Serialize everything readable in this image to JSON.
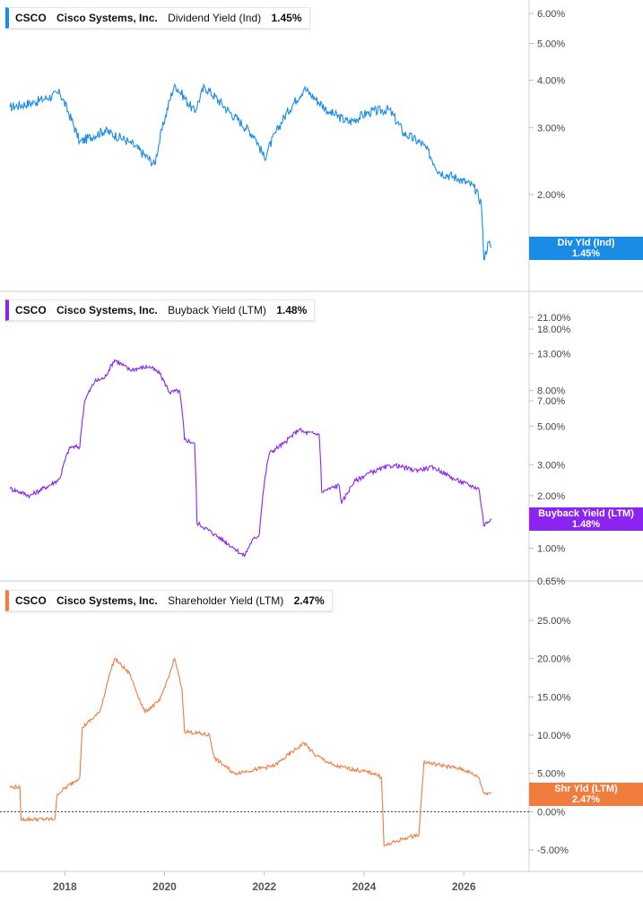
{
  "ticker": "CSCO",
  "company": "Cisco Systems, Inc.",
  "colors": {
    "panel1": "#1a8ce6",
    "panel2": "#8a24ee",
    "panel3": "#f07c3e"
  },
  "x_axis": {
    "ticks": [
      "2018",
      "2020",
      "2022",
      "2024",
      "2026"
    ]
  },
  "chart_data": [
    {
      "type": "line",
      "metric": "Dividend Yield (Ind)",
      "value_label": "1.45%",
      "tag": {
        "title": "Div Yld (Ind)",
        "value": "1.45%"
      },
      "scale": "log",
      "yticks": [
        "6.00%",
        "5.00%",
        "4.00%",
        "3.00%",
        "2.00%"
      ],
      "x_range": [
        2016.9,
        2026.6
      ],
      "series": [
        {
          "x": [
            2016.9,
            2017.4,
            2017.9,
            2018.3,
            2018.8,
            2019.3,
            2019.8,
            2020.2,
            2020.6,
            2020.8,
            2021.3,
            2021.8,
            2022.0,
            2022.4,
            2022.8,
            2023.3,
            2023.7,
            2024.1,
            2024.5,
            2024.8,
            2025.2,
            2025.5,
            2025.9,
            2026.2,
            2026.35,
            2026.4,
            2026.5,
            2026.55
          ],
          "y": [
            3.4,
            3.5,
            3.7,
            2.75,
            2.95,
            2.75,
            2.4,
            3.9,
            3.3,
            3.85,
            3.3,
            2.85,
            2.5,
            3.2,
            3.8,
            3.3,
            3.1,
            3.3,
            3.35,
            2.9,
            2.7,
            2.3,
            2.2,
            2.1,
            1.9,
            1.35,
            1.5,
            1.45
          ]
        }
      ]
    },
    {
      "type": "line",
      "metric": "Buyback Yield (LTM)",
      "value_label": "1.48%",
      "tag": {
        "title": "Buyback Yield (LTM)",
        "value": "1.48%"
      },
      "scale": "log",
      "yticks": [
        "21.00%",
        "18.00%",
        "13.00%",
        "8.00%",
        "7.00%",
        "5.00%",
        "3.00%",
        "2.00%",
        "1.00%",
        "0.65%"
      ],
      "x_range": [
        2016.9,
        2026.6
      ],
      "series": [
        {
          "x": [
            2016.9,
            2017.3,
            2017.7,
            2017.9,
            2018.1,
            2018.3,
            2018.4,
            2018.6,
            2018.8,
            2019.0,
            2019.3,
            2019.7,
            2019.9,
            2020.1,
            2020.3,
            2020.4,
            2020.6,
            2020.65,
            2021.0,
            2021.4,
            2021.6,
            2021.75,
            2021.9,
            2022.1,
            2022.4,
            2022.7,
            2022.8,
            2023.1,
            2023.15,
            2023.5,
            2023.55,
            2023.8,
            2024.1,
            2024.6,
            2025.0,
            2025.4,
            2025.8,
            2026.1,
            2026.3,
            2026.4,
            2026.55
          ],
          "y": [
            2.2,
            2.0,
            2.3,
            2.5,
            3.8,
            3.8,
            7.0,
            9.0,
            9.5,
            12.0,
            10.5,
            11.0,
            10.0,
            7.8,
            8.0,
            4.2,
            4.0,
            1.4,
            1.2,
            1.0,
            0.9,
            1.1,
            1.2,
            3.5,
            4.0,
            4.8,
            4.6,
            4.5,
            2.1,
            2.3,
            1.8,
            2.4,
            2.7,
            3.0,
            2.8,
            2.9,
            2.5,
            2.3,
            2.2,
            1.35,
            1.48
          ]
        }
      ]
    },
    {
      "type": "line",
      "metric": "Shareholder Yield (LTM)",
      "value_label": "2.47%",
      "tag": {
        "title": "Shr Yld (LTM)",
        "value": "2.47%"
      },
      "scale": "linear",
      "yticks": [
        "25.00%",
        "20.00%",
        "15.00%",
        "10.00%",
        "5.00%",
        "0.00%",
        "-5.00%"
      ],
      "y_range": [
        -6.5,
        27
      ],
      "x_range": [
        2016.9,
        2026.6
      ],
      "series": [
        {
          "x": [
            2016.9,
            2017.1,
            2017.12,
            2017.8,
            2017.85,
            2018.3,
            2018.35,
            2018.7,
            2018.9,
            2019.0,
            2019.3,
            2019.6,
            2019.9,
            2020.1,
            2020.2,
            2020.35,
            2020.4,
            2020.9,
            2021.0,
            2021.4,
            2021.8,
            2022.2,
            2022.6,
            2022.8,
            2023.0,
            2023.4,
            2023.8,
            2024.2,
            2024.35,
            2024.4,
            2024.8,
            2025.1,
            2025.2,
            2025.6,
            2026.0,
            2026.3,
            2026.4,
            2026.55
          ],
          "y": [
            3.2,
            3.2,
            -1.0,
            -1.0,
            2.3,
            4.5,
            11.0,
            13.0,
            18.0,
            20.0,
            18.0,
            13.0,
            14.5,
            18.0,
            20.0,
            16.0,
            10.5,
            10.0,
            7.0,
            5.0,
            5.5,
            6.0,
            8.0,
            9.0,
            7.5,
            6.0,
            5.5,
            5.0,
            4.5,
            -4.5,
            -3.5,
            -3.0,
            6.5,
            6.0,
            5.5,
            4.5,
            2.4,
            2.47
          ]
        }
      ]
    }
  ]
}
